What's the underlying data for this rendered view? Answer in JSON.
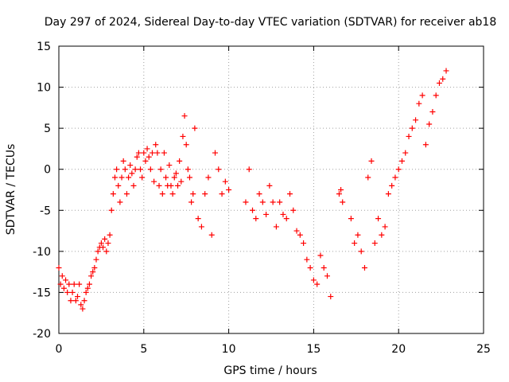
{
  "chart_data": {
    "type": "scatter",
    "title": "Day 297 of 2024, Sidereal Day-to-day VTEC variation (SDTVAR) for receiver ab18",
    "xlabel": "GPS time / hours",
    "ylabel": "SDTVAR / TECUs",
    "xlim": [
      0,
      25
    ],
    "ylim": [
      -20,
      15
    ],
    "xticks": [
      "0",
      "5",
      "10",
      "15",
      "20",
      "25"
    ],
    "yticks": [
      "-20",
      "-15",
      "-10",
      "-5",
      "0",
      "5",
      "10",
      "15"
    ],
    "grid": true,
    "marker": "plus",
    "color": "#ff0000",
    "series": [
      {
        "name": "SDTVAR",
        "x": [
          0.0,
          0.1,
          0.2,
          0.3,
          0.4,
          0.5,
          0.6,
          0.7,
          0.8,
          0.9,
          1.0,
          1.1,
          1.2,
          1.3,
          1.4,
          1.5,
          1.6,
          1.7,
          1.8,
          1.9,
          2.0,
          2.1,
          2.2,
          2.3,
          2.4,
          2.5,
          2.6,
          2.7,
          2.8,
          2.9,
          3.0,
          3.1,
          3.2,
          3.3,
          3.4,
          3.5,
          3.6,
          3.7,
          3.8,
          3.9,
          4.0,
          4.1,
          4.2,
          4.3,
          4.4,
          4.5,
          4.6,
          4.7,
          4.8,
          4.9,
          5.0,
          5.1,
          5.2,
          5.3,
          5.4,
          5.5,
          5.6,
          5.7,
          5.8,
          5.9,
          6.0,
          6.1,
          6.2,
          6.3,
          6.4,
          6.5,
          6.6,
          6.7,
          6.8,
          6.9,
          7.0,
          7.1,
          7.2,
          7.3,
          7.4,
          7.5,
          7.6,
          7.7,
          7.8,
          7.9,
          8.0,
          8.2,
          8.4,
          8.6,
          8.8,
          9.0,
          9.2,
          9.4,
          9.6,
          9.8,
          10.0,
          11.0,
          11.2,
          11.4,
          11.6,
          11.8,
          12.0,
          12.2,
          12.4,
          12.6,
          12.8,
          13.0,
          13.2,
          13.4,
          13.6,
          13.8,
          14.0,
          14.2,
          14.4,
          14.6,
          14.8,
          15.0,
          15.2,
          15.4,
          15.6,
          15.8,
          16.0,
          16.5,
          16.6,
          16.7,
          17.2,
          17.4,
          17.6,
          17.8,
          18.0,
          18.2,
          18.4,
          18.6,
          18.8,
          19.0,
          19.2,
          19.4,
          19.6,
          19.8,
          20.0,
          20.2,
          20.4,
          20.6,
          20.8,
          21.0,
          21.2,
          21.4,
          21.6,
          21.8,
          22.0,
          22.2,
          22.4,
          22.6,
          22.8
        ],
        "y": [
          -12.0,
          -14.0,
          -13.0,
          -14.5,
          -13.5,
          -15.0,
          -14.0,
          -16.0,
          -15.0,
          -14.0,
          -16.0,
          -15.5,
          -14.0,
          -16.5,
          -17.0,
          -16.0,
          -15.0,
          -14.5,
          -14.0,
          -13.0,
          -12.5,
          -12.0,
          -11.0,
          -10.0,
          -9.5,
          -9.0,
          -9.5,
          -8.5,
          -10.0,
          -9.0,
          -8.0,
          -5.0,
          -3.0,
          -1.0,
          0.0,
          -2.0,
          -4.0,
          -1.0,
          1.0,
          0.0,
          -3.0,
          -1.0,
          0.5,
          -0.5,
          -2.0,
          0.0,
          1.5,
          2.0,
          0.0,
          -1.0,
          2.0,
          1.0,
          2.5,
          1.5,
          0.0,
          2.0,
          -1.5,
          3.0,
          2.0,
          -2.0,
          0.0,
          -3.0,
          2.0,
          -1.0,
          -2.0,
          0.5,
          -2.0,
          -3.0,
          -1.0,
          -0.5,
          -2.0,
          1.0,
          -1.5,
          4.0,
          6.5,
          3.0,
          0.0,
          -1.0,
          -4.0,
          -3.0,
          5.0,
          -6.0,
          -7.0,
          -3.0,
          -1.0,
          -8.0,
          2.0,
          0.0,
          -3.0,
          -1.5,
          -2.5,
          -4.0,
          0.0,
          -5.0,
          -6.0,
          -3.0,
          -4.0,
          -5.5,
          -2.0,
          -4.0,
          -7.0,
          -4.0,
          -5.5,
          -6.0,
          -3.0,
          -5.0,
          -7.5,
          -8.0,
          -9.0,
          -11.0,
          -12.0,
          -13.5,
          -14.0,
          -10.5,
          -12.0,
          -13.0,
          -15.5,
          -3.0,
          -2.5,
          -4.0,
          -6.0,
          -9.0,
          -8.0,
          -10.0,
          -12.0,
          -1.0,
          1.0,
          -9.0,
          -6.0,
          -8.0,
          -7.0,
          -3.0,
          -2.0,
          -1.0,
          0.0,
          1.0,
          2.0,
          4.0,
          5.0,
          6.0,
          8.0,
          9.0,
          3.0,
          5.5,
          7.0,
          9.0,
          10.5,
          11.0,
          12.0
        ]
      }
    ]
  }
}
